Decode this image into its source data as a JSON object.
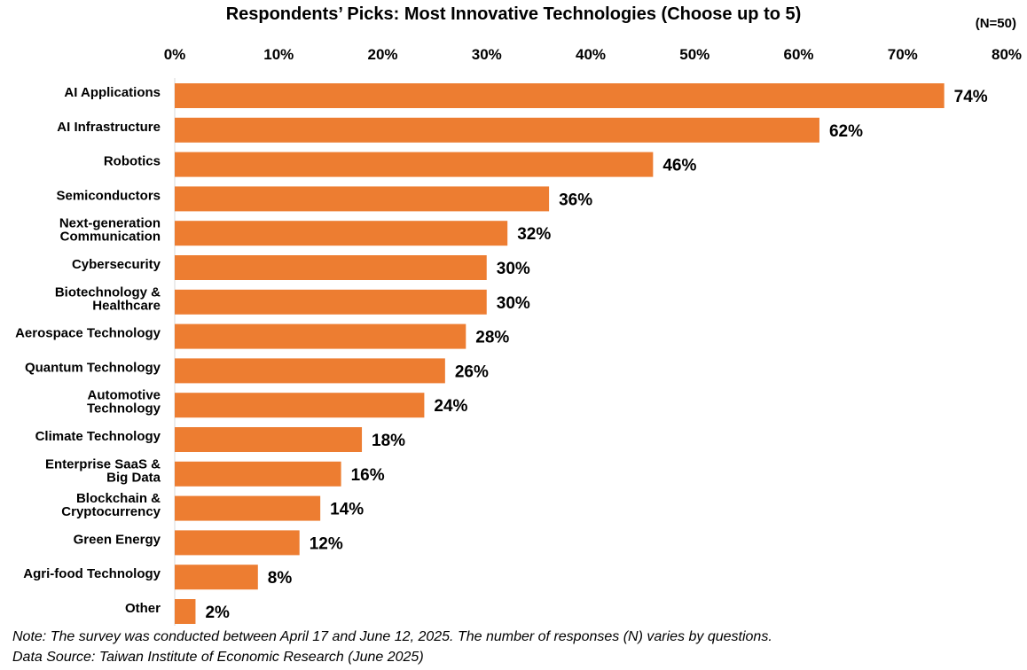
{
  "chart_data": {
    "type": "bar",
    "orientation": "horizontal",
    "title": "Respondents’ Picks: Most Innovative Technologies (Choose up to 5)",
    "sample_size": "(N=50)",
    "categories": [
      "AI Applications",
      "AI Infrastructure",
      "Robotics",
      "Semiconductors",
      "Next-generation Communication",
      "Cybersecurity",
      "Biotechnology & Healthcare",
      "Aerospace Technology",
      "Quantum Technology",
      "Automotive Technology",
      "Climate Technology",
      "Enterprise SaaS & Big Data",
      "Blockchain & Cryptocurrency",
      "Green Energy",
      "Agri-food Technology",
      "Other"
    ],
    "category_lines": [
      [
        "AI Applications"
      ],
      [
        "AI Infrastructure"
      ],
      [
        "Robotics"
      ],
      [
        "Semiconductors"
      ],
      [
        "Next-generation",
        "Communication"
      ],
      [
        "Cybersecurity"
      ],
      [
        "Biotechnology &",
        "Healthcare"
      ],
      [
        "Aerospace Technology"
      ],
      [
        "Quantum Technology"
      ],
      [
        "Automotive",
        "Technology"
      ],
      [
        "Climate Technology"
      ],
      [
        "Enterprise SaaS &",
        "Big Data"
      ],
      [
        "Blockchain &",
        "Cryptocurrency"
      ],
      [
        "Green Energy"
      ],
      [
        "Agri-food Technology"
      ],
      [
        "Other"
      ]
    ],
    "values": [
      74,
      62,
      46,
      36,
      32,
      30,
      30,
      28,
      26,
      24,
      18,
      16,
      14,
      12,
      8,
      2
    ],
    "value_labels": [
      "74%",
      "62%",
      "46%",
      "36%",
      "32%",
      "30%",
      "30%",
      "28%",
      "26%",
      "24%",
      "18%",
      "16%",
      "14%",
      "12%",
      "8%",
      "2%"
    ],
    "xlim": [
      0,
      80
    ],
    "x_ticks": [
      0,
      10,
      20,
      30,
      40,
      50,
      60,
      70,
      80
    ],
    "x_tick_labels": [
      "0%",
      "10%",
      "20%",
      "30%",
      "40%",
      "50%",
      "60%",
      "70%",
      "80%"
    ],
    "x_axis_position": "top",
    "grid": false,
    "bar_color": "#ED7D31"
  },
  "footer": {
    "note": "Note: The survey was conducted between April 17 and  June 12, 2025. The number of responses (N) varies by questions.",
    "source": "Data Source: Taiwan Institute of Economic Research (June 2025)"
  }
}
